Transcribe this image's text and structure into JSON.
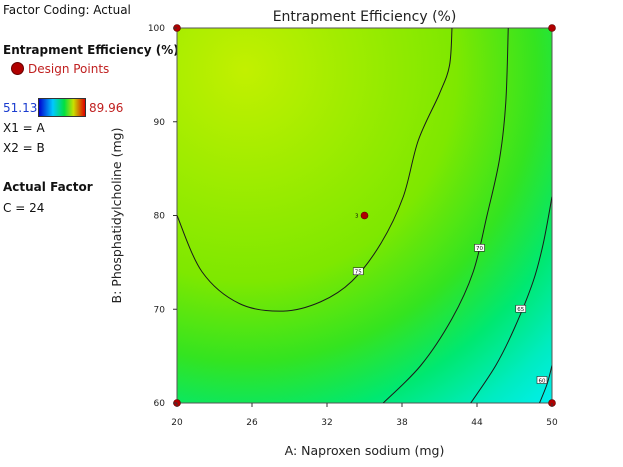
{
  "legend": {
    "factor_coding": "Factor Coding: Actual",
    "response_title": "Entrapment Efficiency (%)",
    "design_points_label": "Design Points",
    "range_min": "51.13",
    "range_max": "89.96",
    "x1_label": "X1 = A",
    "x2_label": "X2 = B",
    "actual_factor_title": "Actual Factor",
    "actual_factor_value": "C = 24"
  },
  "colors": {
    "design_point": "#b00000",
    "range_min_text": "#1a3ccf",
    "range_max_text": "#c02020",
    "legend_red_text": "#c02020"
  },
  "chart_data": {
    "type": "contour",
    "title": "Entrapment Efficiency (%)",
    "xlabel": "A: Naproxen sodium (mg)",
    "ylabel": "B: Phosphatidylcholine (mg)",
    "xlim": [
      20,
      50
    ],
    "ylim": [
      60,
      100
    ],
    "x_ticks": [
      20,
      26,
      32,
      38,
      44,
      50
    ],
    "y_ticks": [
      60,
      70,
      80,
      90,
      100
    ],
    "color_range": [
      51.13,
      89.96
    ],
    "contour_levels": [
      75,
      70,
      65,
      60
    ],
    "contour_labels": [
      {
        "text": "75",
        "x": 34.5,
        "y": 74
      },
      {
        "text": "70",
        "x": 44.2,
        "y": 76.5
      },
      {
        "text": "65",
        "x": 47.5,
        "y": 70
      },
      {
        "text": "60",
        "x": 49.2,
        "y": 62.4
      }
    ],
    "contours": [
      {
        "level": 75,
        "points": [
          [
            20,
            80
          ],
          [
            22,
            74
          ],
          [
            25,
            70.6
          ],
          [
            28.5,
            69.8
          ],
          [
            31.5,
            70.8
          ],
          [
            34,
            73
          ],
          [
            36.3,
            77
          ],
          [
            38.1,
            82
          ],
          [
            39.3,
            88
          ],
          [
            41,
            93
          ],
          [
            41.8,
            96
          ],
          [
            42,
            100
          ]
        ]
      },
      {
        "level": 70,
        "points": [
          [
            36.5,
            60
          ],
          [
            39.5,
            64
          ],
          [
            42,
            69
          ],
          [
            43.7,
            74
          ],
          [
            44.8,
            80
          ],
          [
            45.8,
            86
          ],
          [
            46.3,
            92
          ],
          [
            46.5,
            100
          ]
        ]
      },
      {
        "level": 65,
        "points": [
          [
            43.5,
            60
          ],
          [
            45.5,
            64
          ],
          [
            47,
            68
          ],
          [
            48.5,
            73
          ],
          [
            49.3,
            77
          ],
          [
            50,
            82
          ]
        ]
      },
      {
        "level": 60,
        "points": [
          [
            49,
            60
          ],
          [
            49.6,
            62
          ],
          [
            50,
            64
          ]
        ]
      }
    ],
    "design_points": [
      {
        "x": 20,
        "y": 100
      },
      {
        "x": 50,
        "y": 100
      },
      {
        "x": 20,
        "y": 60
      },
      {
        "x": 50,
        "y": 60
      },
      {
        "x": 35,
        "y": 80,
        "label": "3"
      }
    ]
  }
}
